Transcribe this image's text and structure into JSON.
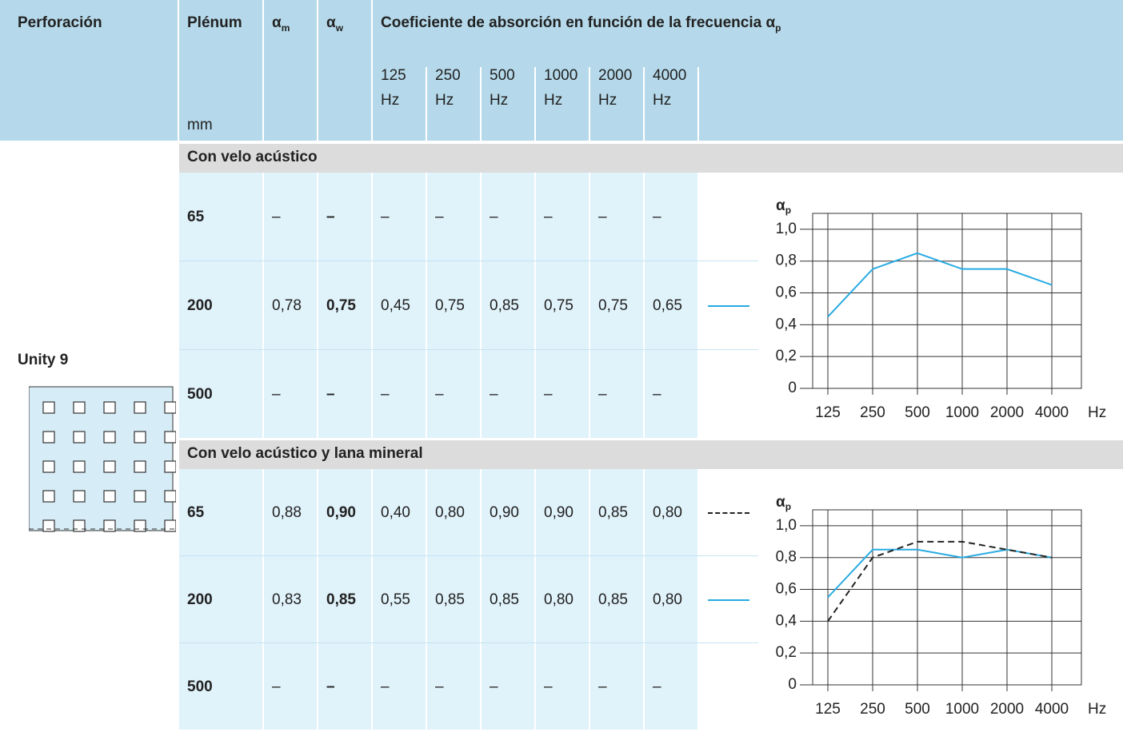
{
  "header": {
    "columns": {
      "perforacion": "Perforación",
      "plenum": {
        "label": "Plénum",
        "unit": "mm"
      },
      "alpha_m": {
        "symbol": "α",
        "sub": "m"
      },
      "alpha_w": {
        "symbol": "α",
        "sub": "w"
      },
      "coefficient": {
        "label": "Coeficiente de absorción en función de la frecuencia α",
        "sub": "p"
      }
    },
    "frequencies": [
      {
        "value": "125",
        "unit": "Hz"
      },
      {
        "value": "250",
        "unit": "Hz"
      },
      {
        "value": "500",
        "unit": "Hz"
      },
      {
        "value": "1000",
        "unit": "Hz"
      },
      {
        "value": "2000",
        "unit": "Hz"
      },
      {
        "value": "4000",
        "unit": "Hz"
      }
    ]
  },
  "product": "Unity 9",
  "sections": [
    {
      "title": "Con velo acústico",
      "rows": [
        {
          "plenum": "65",
          "alpha_m": "–",
          "alpha_w": "–",
          "values": [
            "–",
            "–",
            "–",
            "–",
            "–",
            "–"
          ]
        },
        {
          "plenum": "200",
          "alpha_m": "0,78",
          "alpha_w": "0,75",
          "values": [
            "0,45",
            "0,75",
            "0,85",
            "0,75",
            "0,75",
            "0,65"
          ]
        },
        {
          "plenum": "500",
          "alpha_m": "–",
          "alpha_w": "–",
          "values": [
            "–",
            "–",
            "–",
            "–",
            "–",
            "–"
          ]
        }
      ],
      "chart": {
        "type": "line",
        "y_label": {
          "symbol": "α",
          "sub": "p"
        },
        "x_unit": "Hz",
        "categories": [
          "125",
          "250",
          "500",
          "1000",
          "2000",
          "4000"
        ],
        "series": [
          {
            "color": "#29abe2",
            "dash": false,
            "values": [
              0.45,
              0.75,
              0.85,
              0.75,
              0.75,
              0.65
            ]
          }
        ],
        "ylim": [
          0,
          1.1
        ],
        "yticks": [
          0,
          {
            "value": 0.2,
            "label": "0,2"
          },
          {
            "value": 0.4,
            "label": "0,4"
          },
          {
            "value": 0.6,
            "label": "0,6"
          },
          {
            "value": 0.8,
            "label": "0,8"
          },
          {
            "value": 1,
            "label": "1,0"
          }
        ],
        "grid": true
      }
    },
    {
      "title": "Con velo acústico y lana mineral",
      "rows": [
        {
          "plenum": "65",
          "alpha_m": "0,88",
          "alpha_w": "0,90",
          "values": [
            "0,40",
            "0,80",
            "0,90",
            "0,90",
            "0,85",
            "0,80"
          ]
        },
        {
          "plenum": "200",
          "alpha_m": "0,83",
          "alpha_w": "0,85",
          "values": [
            "0,55",
            "0,85",
            "0,85",
            "0,80",
            "0,85",
            "0,80"
          ]
        },
        {
          "plenum": "500",
          "alpha_m": "–",
          "alpha_w": "–",
          "values": [
            "–",
            "–",
            "–",
            "–",
            "–",
            "–"
          ]
        }
      ],
      "chart": {
        "type": "line",
        "y_label": {
          "symbol": "α",
          "sub": "p"
        },
        "x_unit": "Hz",
        "categories": [
          "125",
          "250",
          "500",
          "1000",
          "2000",
          "4000"
        ],
        "series": [
          {
            "color": "#29abe2",
            "dash": false,
            "values": [
              0.55,
              0.85,
              0.85,
              0.8,
              0.85,
              0.8
            ]
          },
          {
            "color": "#222222",
            "dash": true,
            "values": [
              0.4,
              0.8,
              0.9,
              0.9,
              0.85,
              0.8
            ]
          }
        ],
        "ylim": [
          0,
          1.1
        ],
        "yticks": [
          0,
          {
            "value": 0.2,
            "label": "0,2"
          },
          {
            "value": 0.4,
            "label": "0,4"
          },
          {
            "value": 0.6,
            "label": "0,6"
          },
          {
            "value": 0.8,
            "label": "0,8"
          },
          {
            "value": 1,
            "label": "1,0"
          }
        ],
        "grid": true
      }
    }
  ]
}
